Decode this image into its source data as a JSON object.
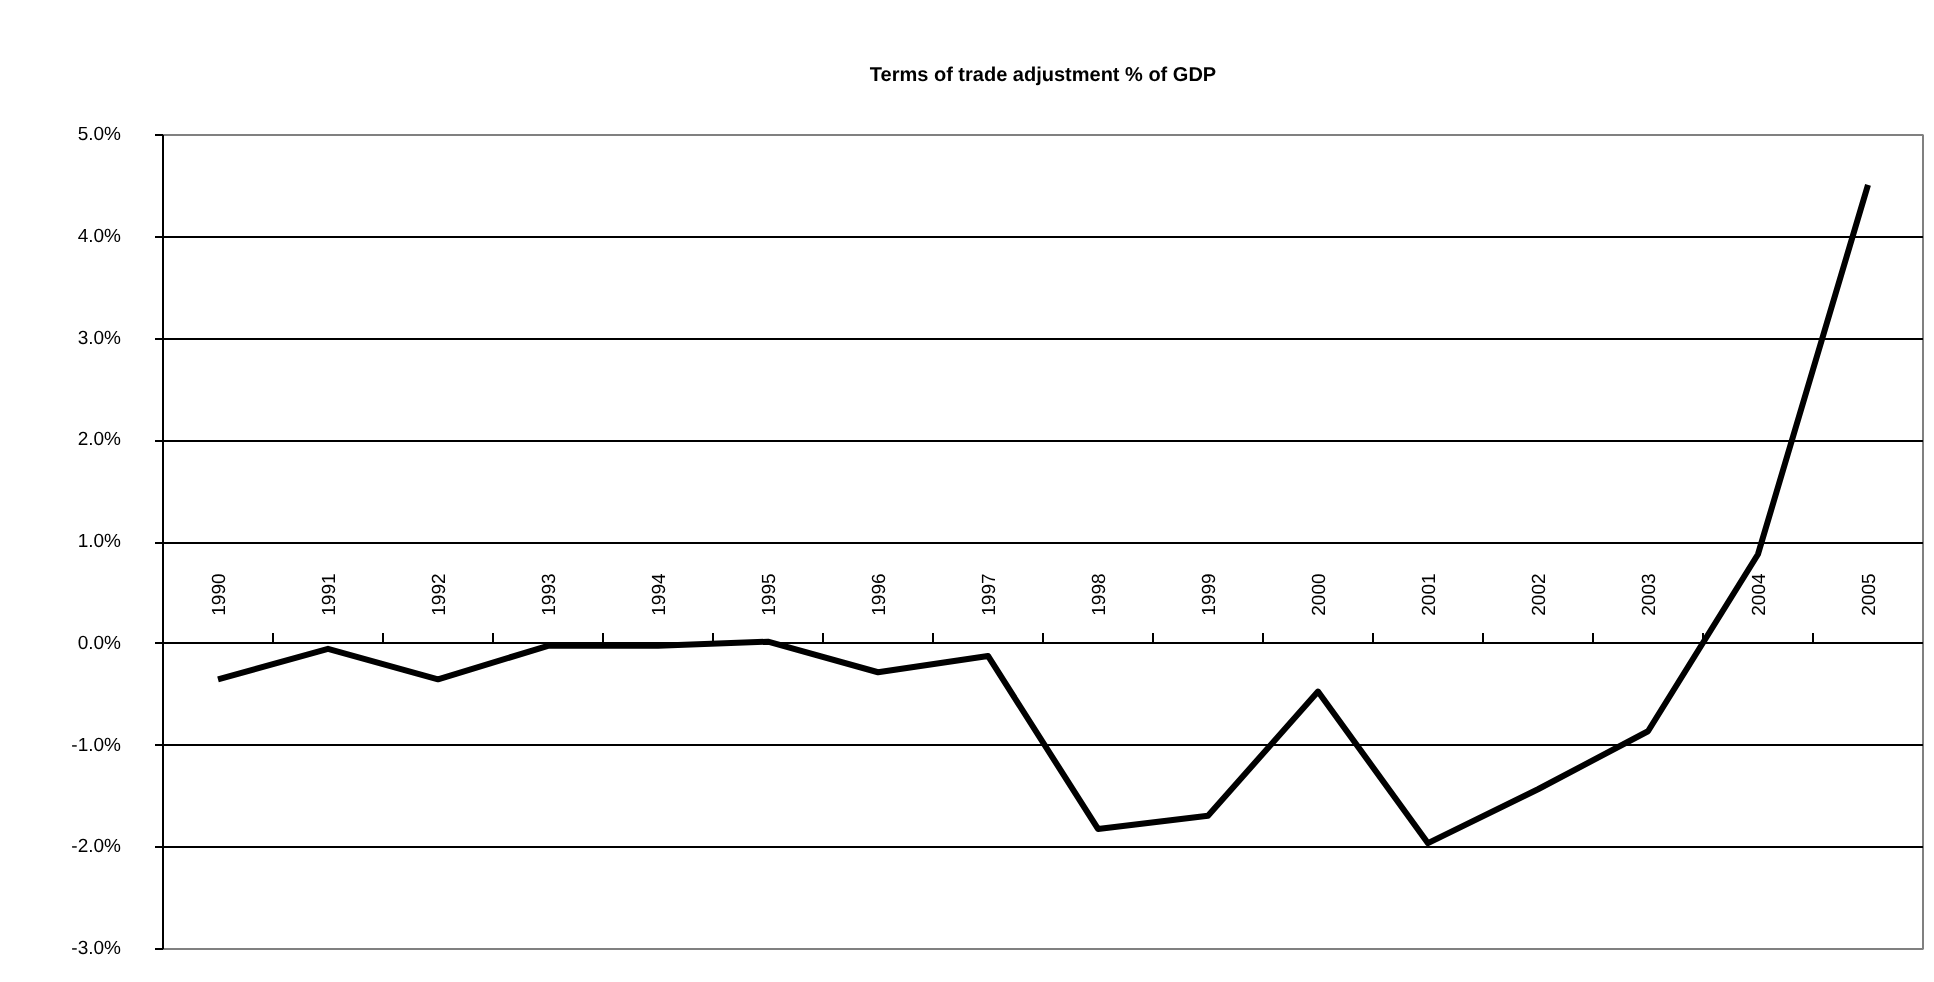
{
  "chart_data": {
    "type": "line",
    "title": "Terms of trade adjustment % of GDP",
    "categories": [
      "1990",
      "1991",
      "1992",
      "1993",
      "1994",
      "1995",
      "1996",
      "1997",
      "1998",
      "1999",
      "2000",
      "2001",
      "2002",
      "2003",
      "2004",
      "2005"
    ],
    "series": [
      {
        "color": "#000000",
        "values": [
          -0.35,
          -0.05,
          -0.35,
          -0.02,
          -0.02,
          0.02,
          -0.28,
          -0.12,
          -1.82,
          -1.69,
          -0.47,
          -1.96,
          -1.43,
          -0.86,
          0.88,
          4.51
        ]
      }
    ],
    "ylim": [
      -3,
      5
    ],
    "yticks": [
      {
        "value": -3,
        "label": "-3.0%"
      },
      {
        "value": -2,
        "label": "-2.0%"
      },
      {
        "value": -1,
        "label": "-1.0%"
      },
      {
        "value": 0,
        "label": "0.0%"
      },
      {
        "value": 1,
        "label": "1.0%"
      },
      {
        "value": 2,
        "label": "2.0%"
      },
      {
        "value": 3,
        "label": "3.0%"
      },
      {
        "value": 4,
        "label": "4.0%"
      },
      {
        "value": 5,
        "label": "5.0%"
      }
    ],
    "grid": "y"
  }
}
